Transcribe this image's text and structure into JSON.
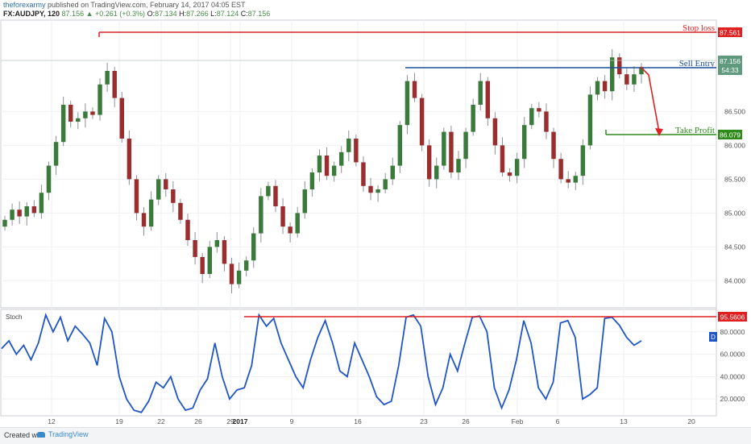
{
  "header": {
    "author": "theforexarmy",
    "published": "published on TradingView.com, February 14, 2017 04:05 EST"
  },
  "ohlc": {
    "symbol": "FX:AUDJPY, 120",
    "last": "87.156",
    "change": "▲ +0.261 (+0.3%)",
    "o_label": "O:",
    "o": "87.134",
    "h_label": "H:",
    "h": "87.266",
    "l_label": "L:",
    "l": "87.124",
    "c_label": "C:",
    "c": "87.156"
  },
  "chart_data": [
    {
      "type": "candlestick",
      "symbol": "FX:AUDJPY",
      "interval": "120",
      "y_axis": {
        "ticks": [
          "84.000",
          "84.500",
          "85.000",
          "85.500",
          "86.000",
          "86.500"
        ],
        "ylim": [
          83.6,
          87.85
        ]
      },
      "x_axis": {
        "ticks": [
          "12",
          "19",
          "22",
          "26",
          "29",
          "2017",
          "9",
          "16",
          "23",
          "26",
          "Feb",
          "6",
          "13",
          "20"
        ]
      },
      "closes": [
        84.9,
        85.05,
        84.95,
        85.1,
        85.0,
        85.3,
        85.7,
        86.05,
        86.6,
        86.35,
        86.4,
        86.5,
        86.45,
        86.9,
        87.1,
        86.7,
        86.1,
        85.5,
        85.0,
        84.8,
        85.2,
        85.5,
        85.35,
        85.15,
        84.9,
        84.6,
        84.35,
        84.1,
        84.5,
        84.6,
        84.25,
        83.95,
        84.15,
        84.3,
        84.7,
        85.25,
        85.4,
        85.1,
        84.8,
        84.7,
        85.0,
        85.35,
        85.6,
        85.85,
        85.55,
        85.7,
        85.9,
        86.1,
        85.75,
        85.4,
        85.3,
        85.35,
        85.5,
        85.7,
        86.3,
        86.95,
        86.7,
        86.0,
        85.5,
        85.7,
        86.2,
        85.6,
        85.8,
        86.2,
        86.6,
        86.95,
        86.4,
        86.0,
        85.6,
        85.55,
        85.8,
        86.3,
        86.55,
        86.5,
        86.2,
        85.8,
        85.5,
        85.45,
        85.55,
        86.0,
        86.75,
        86.95,
        86.8,
        87.3,
        87.05,
        86.9,
        87.05,
        87.156
      ],
      "levels": [
        {
          "label": "Stop loss",
          "value": "87.561",
          "color": "#e02020"
        },
        {
          "label": "Sell Entry",
          "value": "87.156",
          "sub": "54:33",
          "color": "#1c4f9c"
        },
        {
          "label": "Take Profit",
          "value": "86.079",
          "color": "#2e8b1a"
        }
      ]
    },
    {
      "type": "line",
      "name": "Stoch",
      "y_axis": {
        "ticks": [
          "20.0000",
          "40.0000",
          "60.0000",
          "80.0000"
        ],
        "ylim": [
          5,
          100
        ]
      },
      "values": [
        65,
        72,
        60,
        68,
        55,
        70,
        95,
        80,
        93,
        72,
        85,
        78,
        70,
        50,
        92,
        80,
        40,
        20,
        10,
        8,
        18,
        35,
        30,
        40,
        20,
        10,
        12,
        28,
        38,
        70,
        40,
        20,
        28,
        30,
        50,
        95,
        85,
        92,
        70,
        55,
        40,
        30,
        55,
        75,
        90,
        70,
        45,
        40,
        70,
        55,
        40,
        22,
        15,
        18,
        50,
        93,
        95,
        85,
        40,
        15,
        30,
        60,
        45,
        70,
        93,
        94,
        80,
        30,
        12,
        28,
        55,
        90,
        70,
        30,
        20,
        35,
        88,
        90,
        75,
        20,
        24,
        30,
        92,
        93,
        86,
        75,
        68,
        72
      ],
      "marker": "95.5606",
      "legend_tag": "D"
    }
  ],
  "footer": {
    "created_with": "Created with",
    "logo_text": "TradingView"
  },
  "colors": {
    "bull": "#3a7a3a",
    "bear": "#9a2e2e",
    "wick": "#8a9099",
    "stoch_line": "#1f55c6",
    "grid": "#eef0f2"
  }
}
